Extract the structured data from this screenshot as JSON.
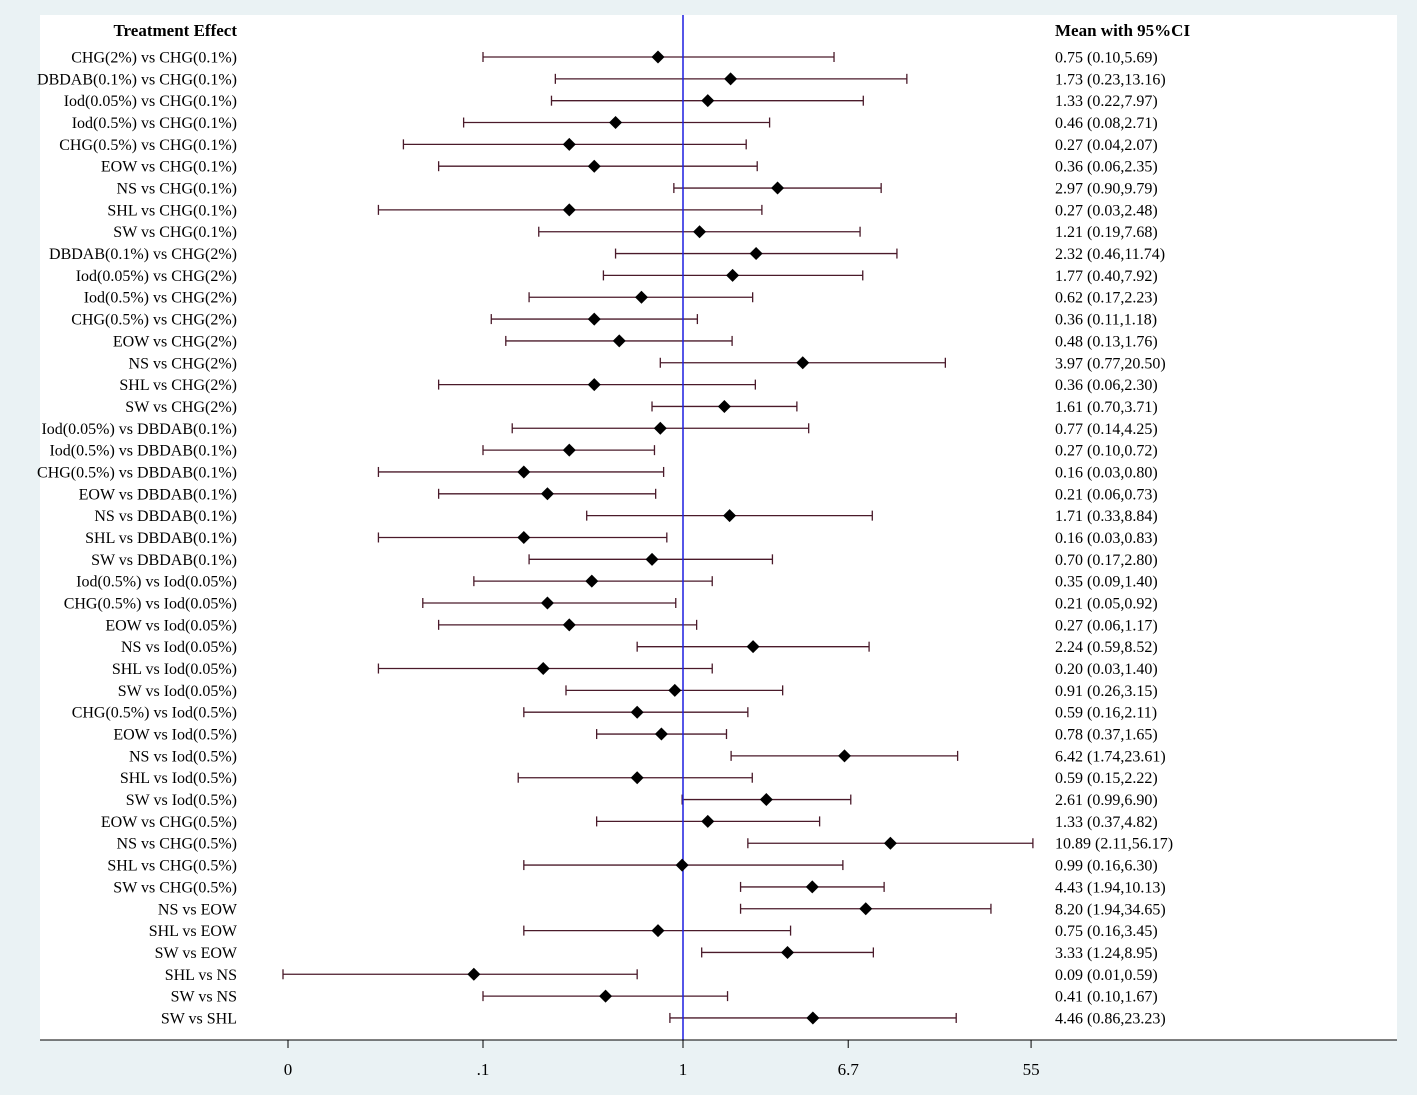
{
  "chart_data": {
    "type": "forest",
    "left_header": "Treatment Effect",
    "right_header": "Mean with 95%CI",
    "x_scale": "log",
    "x_ticks": [
      "0",
      ".1",
      "1",
      "6.7",
      "55"
    ],
    "reference_line": 1,
    "rows": [
      {
        "label": "CHG(2%) vs CHG(0.1%)",
        "mean": 0.75,
        "lo": 0.1,
        "hi": 5.69,
        "text": "0.75 (0.10,5.69)"
      },
      {
        "label": "DBDAB(0.1%) vs CHG(0.1%)",
        "mean": 1.73,
        "lo": 0.23,
        "hi": 13.16,
        "text": "1.73 (0.23,13.16)"
      },
      {
        "label": "Iod(0.05%) vs CHG(0.1%)",
        "mean": 1.33,
        "lo": 0.22,
        "hi": 7.97,
        "text": "1.33 (0.22,7.97)"
      },
      {
        "label": "Iod(0.5%) vs CHG(0.1%)",
        "mean": 0.46,
        "lo": 0.08,
        "hi": 2.71,
        "text": "0.46 (0.08,2.71)"
      },
      {
        "label": "CHG(0.5%) vs CHG(0.1%)",
        "mean": 0.27,
        "lo": 0.04,
        "hi": 2.07,
        "text": "0.27 (0.04,2.07)"
      },
      {
        "label": "EOW vs CHG(0.1%)",
        "mean": 0.36,
        "lo": 0.06,
        "hi": 2.35,
        "text": "0.36 (0.06,2.35)"
      },
      {
        "label": "NS vs CHG(0.1%)",
        "mean": 2.97,
        "lo": 0.9,
        "hi": 9.79,
        "text": "2.97 (0.90,9.79)"
      },
      {
        "label": "SHL vs CHG(0.1%)",
        "mean": 0.27,
        "lo": 0.03,
        "hi": 2.48,
        "text": "0.27 (0.03,2.48)"
      },
      {
        "label": "SW vs CHG(0.1%)",
        "mean": 1.21,
        "lo": 0.19,
        "hi": 7.68,
        "text": "1.21 (0.19,7.68)"
      },
      {
        "label": "DBDAB(0.1%) vs CHG(2%)",
        "mean": 2.32,
        "lo": 0.46,
        "hi": 11.74,
        "text": "2.32 (0.46,11.74)"
      },
      {
        "label": "Iod(0.05%) vs CHG(2%)",
        "mean": 1.77,
        "lo": 0.4,
        "hi": 7.92,
        "text": "1.77 (0.40,7.92)"
      },
      {
        "label": "Iod(0.5%) vs CHG(2%)",
        "mean": 0.62,
        "lo": 0.17,
        "hi": 2.23,
        "text": "0.62 (0.17,2.23)"
      },
      {
        "label": "CHG(0.5%) vs CHG(2%)",
        "mean": 0.36,
        "lo": 0.11,
        "hi": 1.18,
        "text": "0.36 (0.11,1.18)"
      },
      {
        "label": "EOW vs CHG(2%)",
        "mean": 0.48,
        "lo": 0.13,
        "hi": 1.76,
        "text": "0.48 (0.13,1.76)"
      },
      {
        "label": "NS vs CHG(2%)",
        "mean": 3.97,
        "lo": 0.77,
        "hi": 20.5,
        "text": "3.97 (0.77,20.50)"
      },
      {
        "label": "SHL vs CHG(2%)",
        "mean": 0.36,
        "lo": 0.06,
        "hi": 2.3,
        "text": "0.36 (0.06,2.30)"
      },
      {
        "label": "SW vs CHG(2%)",
        "mean": 1.61,
        "lo": 0.7,
        "hi": 3.71,
        "text": "1.61 (0.70,3.71)"
      },
      {
        "label": "Iod(0.05%) vs DBDAB(0.1%)",
        "mean": 0.77,
        "lo": 0.14,
        "hi": 4.25,
        "text": "0.77 (0.14,4.25)"
      },
      {
        "label": "Iod(0.5%) vs DBDAB(0.1%)",
        "mean": 0.27,
        "lo": 0.1,
        "hi": 0.72,
        "text": "0.27 (0.10,0.72)"
      },
      {
        "label": "CHG(0.5%) vs DBDAB(0.1%)",
        "mean": 0.16,
        "lo": 0.03,
        "hi": 0.8,
        "text": "0.16 (0.03,0.80)"
      },
      {
        "label": "EOW vs DBDAB(0.1%)",
        "mean": 0.21,
        "lo": 0.06,
        "hi": 0.73,
        "text": "0.21 (0.06,0.73)"
      },
      {
        "label": "NS vs DBDAB(0.1%)",
        "mean": 1.71,
        "lo": 0.33,
        "hi": 8.84,
        "text": "1.71 (0.33,8.84)"
      },
      {
        "label": "SHL vs DBDAB(0.1%)",
        "mean": 0.16,
        "lo": 0.03,
        "hi": 0.83,
        "text": "0.16 (0.03,0.83)"
      },
      {
        "label": "SW vs DBDAB(0.1%)",
        "mean": 0.7,
        "lo": 0.17,
        "hi": 2.8,
        "text": "0.70 (0.17,2.80)"
      },
      {
        "label": "Iod(0.5%) vs Iod(0.05%)",
        "mean": 0.35,
        "lo": 0.09,
        "hi": 1.4,
        "text": "0.35 (0.09,1.40)"
      },
      {
        "label": "CHG(0.5%) vs Iod(0.05%)",
        "mean": 0.21,
        "lo": 0.05,
        "hi": 0.92,
        "text": "0.21 (0.05,0.92)"
      },
      {
        "label": "EOW vs Iod(0.05%)",
        "mean": 0.27,
        "lo": 0.06,
        "hi": 1.17,
        "text": "0.27 (0.06,1.17)"
      },
      {
        "label": "NS vs Iod(0.05%)",
        "mean": 2.24,
        "lo": 0.59,
        "hi": 8.52,
        "text": "2.24 (0.59,8.52)"
      },
      {
        "label": "SHL vs Iod(0.05%)",
        "mean": 0.2,
        "lo": 0.03,
        "hi": 1.4,
        "text": "0.20 (0.03,1.40)"
      },
      {
        "label": "SW vs Iod(0.05%)",
        "mean": 0.91,
        "lo": 0.26,
        "hi": 3.15,
        "text": "0.91 (0.26,3.15)"
      },
      {
        "label": "CHG(0.5%) vs Iod(0.5%)",
        "mean": 0.59,
        "lo": 0.16,
        "hi": 2.11,
        "text": "0.59 (0.16,2.11)"
      },
      {
        "label": "EOW vs Iod(0.5%)",
        "mean": 0.78,
        "lo": 0.37,
        "hi": 1.65,
        "text": "0.78 (0.37,1.65)"
      },
      {
        "label": "NS vs Iod(0.5%)",
        "mean": 6.42,
        "lo": 1.74,
        "hi": 23.61,
        "text": "6.42 (1.74,23.61)"
      },
      {
        "label": "SHL vs Iod(0.5%)",
        "mean": 0.59,
        "lo": 0.15,
        "hi": 2.22,
        "text": "0.59 (0.15,2.22)"
      },
      {
        "label": "SW vs Iod(0.5%)",
        "mean": 2.61,
        "lo": 0.99,
        "hi": 6.9,
        "text": "2.61 (0.99,6.90)"
      },
      {
        "label": "EOW vs CHG(0.5%)",
        "mean": 1.33,
        "lo": 0.37,
        "hi": 4.82,
        "text": "1.33 (0.37,4.82)"
      },
      {
        "label": "NS vs CHG(0.5%)",
        "mean": 10.89,
        "lo": 2.11,
        "hi": 56.17,
        "text": "10.89 (2.11,56.17)"
      },
      {
        "label": "SHL vs CHG(0.5%)",
        "mean": 0.99,
        "lo": 0.16,
        "hi": 6.3,
        "text": "0.99 (0.16,6.30)"
      },
      {
        "label": "SW vs CHG(0.5%)",
        "mean": 4.43,
        "lo": 1.94,
        "hi": 10.13,
        "text": "4.43 (1.94,10.13)"
      },
      {
        "label": "NS vs EOW",
        "mean": 8.2,
        "lo": 1.94,
        "hi": 34.65,
        "text": "8.20 (1.94,34.65)"
      },
      {
        "label": "SHL vs EOW",
        "mean": 0.75,
        "lo": 0.16,
        "hi": 3.45,
        "text": "0.75 (0.16,3.45)"
      },
      {
        "label": "SW vs EOW",
        "mean": 3.33,
        "lo": 1.24,
        "hi": 8.95,
        "text": "3.33 (1.24,8.95)"
      },
      {
        "label": "SHL vs NS",
        "mean": 0.09,
        "lo": 0.01,
        "hi": 0.59,
        "text": "0.09 (0.01,0.59)"
      },
      {
        "label": "SW vs NS",
        "mean": 0.41,
        "lo": 0.1,
        "hi": 1.67,
        "text": "0.41 (0.10,1.67)"
      },
      {
        "label": "SW vs SHL",
        "mean": 4.46,
        "lo": 0.86,
        "hi": 23.23,
        "text": "4.46 (0.86,23.23)"
      }
    ],
    "colors": {
      "outer_background": "#eaf2f4",
      "plot_background": "#ffffff",
      "reference_line": "#1f1fe0",
      "ci_line": "#4a1a2a",
      "marker": "#000000",
      "text": "#000000"
    }
  }
}
